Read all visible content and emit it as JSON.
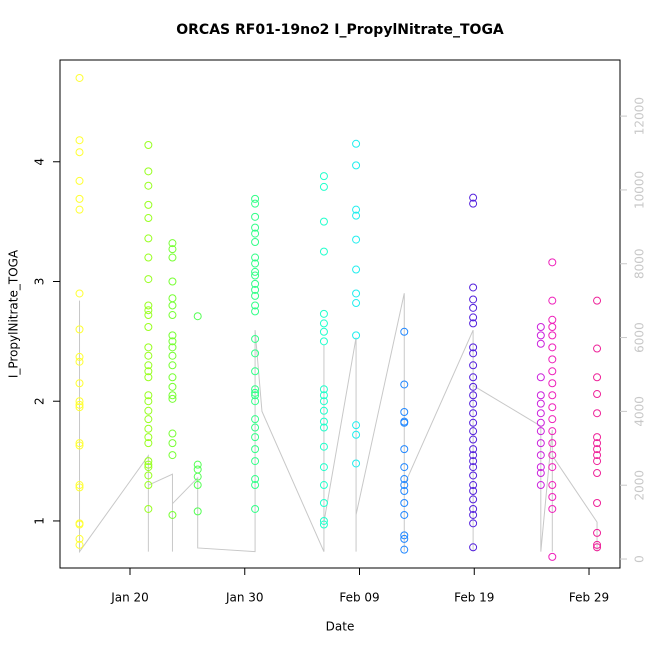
{
  "chart_data": {
    "type": "scatter",
    "title": "ORCAS RF01-19no2 I_PropylNitrate_TOGA",
    "x_label": "Date",
    "y_label": "I_PropylNitrate_TOGA",
    "xlim": [
      13.9,
      62.7
    ],
    "xticks": [
      {
        "value": 20,
        "label": "Jan 20"
      },
      {
        "value": 30,
        "label": "Jan 30"
      },
      {
        "value": 40,
        "label": "Feb 09"
      },
      {
        "value": 50,
        "label": "Feb 19"
      },
      {
        "value": 60,
        "label": "Feb 29"
      }
    ],
    "ylim": [
      0.607,
      4.85
    ],
    "yticks": [
      1,
      2,
      3,
      4
    ],
    "y2lim": [
      -243,
      13520
    ],
    "y2ticks": [
      0,
      2000,
      4000,
      6000,
      8000,
      10000,
      12000
    ],
    "series": [
      {
        "axis": "y2",
        "color": "#c8c8c8",
        "x": [
          15.6,
          15.6,
          21.6,
          21.6,
          21.6,
          23.7,
          23.7,
          23.7,
          25.9,
          25.9,
          30.9,
          30.9,
          31.5,
          36.9,
          36.9,
          36.9,
          39.7,
          39.7,
          39.7,
          43.9,
          43.9,
          43.9,
          49.9,
          49.9,
          49.9,
          55.8,
          55.8,
          56.8,
          56.8,
          56.8,
          60.7,
          60.7
        ],
        "values": [
          7000,
          200,
          2800,
          200,
          2000,
          2300,
          200,
          1500,
          2200,
          300,
          200,
          6200,
          4000,
          200,
          5800,
          1000,
          6000,
          200,
          1200,
          7200,
          200,
          2000,
          6200,
          200,
          4700,
          3600,
          200,
          3500,
          200,
          2800,
          1000,
          200
        ]
      },
      {
        "color": "#ffff33",
        "x": [
          15.6,
          15.6,
          15.6,
          15.6,
          15.6,
          15.6,
          15.6,
          15.6,
          15.6,
          15.6,
          15.6,
          15.6,
          15.6,
          15.6,
          15.6,
          15.6,
          15.6,
          15.6,
          15.6,
          15.6,
          15.6,
          15.6
        ],
        "values": [
          4.7,
          4.18,
          4.08,
          3.84,
          3.69,
          3.6,
          2.9,
          2.6,
          2.37,
          2.33,
          2.15,
          2.0,
          1.97,
          1.95,
          1.65,
          1.63,
          1.3,
          1.28,
          0.98,
          0.97,
          0.85,
          0.8
        ]
      },
      {
        "color": "#99ff22",
        "x": [
          21.6,
          21.6,
          21.6,
          21.6,
          21.6,
          21.6,
          21.6,
          21.6,
          21.6,
          21.6,
          21.6,
          21.6,
          21.6,
          21.6,
          21.6,
          21.6,
          21.6,
          21.6,
          21.6,
          21.6,
          21.6,
          21.6,
          21.6,
          21.6,
          21.6,
          21.6,
          21.6,
          21.6,
          21.6,
          21.6
        ],
        "values": [
          4.14,
          3.92,
          3.8,
          3.64,
          3.53,
          3.36,
          3.2,
          3.02,
          2.8,
          2.76,
          2.72,
          2.62,
          2.45,
          2.38,
          2.3,
          2.25,
          2.2,
          2.05,
          2.0,
          1.92,
          1.85,
          1.77,
          1.7,
          1.65,
          1.5,
          1.47,
          1.45,
          1.38,
          1.3,
          1.1
        ]
      },
      {
        "color": "#77ff33",
        "x": [
          23.7,
          23.7,
          23.7,
          23.7,
          23.7,
          23.7,
          23.7,
          23.7,
          23.7,
          23.7,
          23.7,
          23.7,
          23.7,
          23.7,
          23.7,
          23.7,
          23.7,
          23.7,
          23.7,
          23.7
        ],
        "values": [
          3.32,
          3.27,
          3.2,
          3.0,
          2.86,
          2.8,
          2.72,
          2.55,
          2.5,
          2.45,
          2.38,
          2.3,
          2.2,
          2.12,
          2.05,
          2.02,
          1.73,
          1.65,
          1.55,
          1.05
        ]
      },
      {
        "color": "#55ff55",
        "x": [
          25.9,
          25.9,
          25.9,
          25.9,
          25.9,
          25.9
        ],
        "values": [
          2.71,
          1.47,
          1.43,
          1.37,
          1.3,
          1.08
        ]
      },
      {
        "color": "#33ff88",
        "x": [
          30.9,
          30.9,
          30.9,
          30.9,
          30.9,
          30.9,
          30.9,
          30.9,
          30.9,
          30.9,
          30.9,
          30.9,
          30.9,
          30.9,
          30.9,
          30.9,
          30.9,
          30.9,
          30.9,
          30.9,
          30.9,
          30.9,
          30.9,
          30.9,
          30.9,
          30.9,
          30.9,
          30.9,
          30.9,
          30.9
        ],
        "values": [
          3.69,
          3.65,
          3.54,
          3.45,
          3.4,
          3.33,
          3.2,
          3.15,
          3.08,
          3.05,
          2.98,
          2.93,
          2.88,
          2.8,
          2.75,
          2.52,
          2.4,
          2.25,
          2.1,
          2.07,
          2.05,
          2.0,
          1.85,
          1.78,
          1.7,
          1.6,
          1.5,
          1.35,
          1.3,
          1.1
        ]
      },
      {
        "color": "#22ffcc",
        "x": [
          36.9,
          36.9,
          36.9,
          36.9,
          36.9,
          36.9,
          36.9,
          36.9,
          36.9,
          36.9,
          36.9,
          36.9,
          36.9,
          36.9,
          36.9,
          36.9,
          36.9,
          36.9,
          36.9,
          36.9
        ],
        "values": [
          3.88,
          3.79,
          3.5,
          3.25,
          2.73,
          2.65,
          2.58,
          2.5,
          2.1,
          2.05,
          2.0,
          1.92,
          1.83,
          1.78,
          1.62,
          1.45,
          1.3,
          1.15,
          1.0,
          0.97
        ]
      },
      {
        "color": "#22eeee",
        "x": [
          39.7,
          39.7,
          39.7,
          39.7,
          39.7,
          39.7,
          39.7,
          39.7,
          39.7,
          39.7,
          39.7,
          39.7
        ],
        "values": [
          4.15,
          3.97,
          3.6,
          3.55,
          3.35,
          3.1,
          2.9,
          2.82,
          2.55,
          1.8,
          1.72,
          1.48
        ]
      },
      {
        "color": "#2288ff",
        "x": [
          43.9,
          43.9,
          43.9,
          43.9,
          43.9,
          43.9,
          43.9,
          43.9,
          43.9,
          43.9,
          43.9,
          43.9,
          43.9,
          43.9,
          43.9
        ],
        "values": [
          2.58,
          2.14,
          1.91,
          1.83,
          1.82,
          1.6,
          1.45,
          1.35,
          1.3,
          1.25,
          1.15,
          1.05,
          0.88,
          0.85,
          0.76
        ]
      },
      {
        "color": "#5522dd",
        "x": [
          49.9,
          49.9,
          49.9,
          49.9,
          49.9,
          49.9,
          49.9,
          49.9,
          49.9,
          49.9,
          49.9,
          49.9,
          49.9,
          49.9,
          49.9,
          49.9,
          49.9,
          49.9,
          49.9,
          49.9,
          49.9,
          49.9,
          49.9,
          49.9,
          49.9,
          49.9,
          49.9,
          49.9,
          49.9,
          49.9
        ],
        "values": [
          3.7,
          3.65,
          2.95,
          2.85,
          2.78,
          2.7,
          2.65,
          2.45,
          2.4,
          2.3,
          2.2,
          2.12,
          2.05,
          1.98,
          1.9,
          1.82,
          1.75,
          1.68,
          1.6,
          1.55,
          1.5,
          1.45,
          1.38,
          1.3,
          1.25,
          1.18,
          1.1,
          1.05,
          0.98,
          0.78
        ]
      },
      {
        "color": "#cc22dd",
        "x": [
          55.8,
          55.8,
          55.8,
          55.8,
          55.8,
          55.8,
          55.8,
          55.8,
          55.8,
          55.8,
          55.8,
          55.8,
          55.8,
          55.8
        ],
        "values": [
          2.62,
          2.55,
          2.48,
          2.2,
          2.05,
          1.98,
          1.9,
          1.82,
          1.75,
          1.65,
          1.55,
          1.45,
          1.4,
          1.3
        ]
      },
      {
        "color": "#ee22bb",
        "x": [
          56.8,
          56.8,
          56.8,
          56.8,
          56.8,
          56.8,
          56.8,
          56.8,
          56.8,
          56.8,
          56.8,
          56.8,
          56.8,
          56.8,
          56.8,
          56.8,
          56.8,
          56.8,
          56.8,
          56.8
        ],
        "values": [
          3.16,
          2.84,
          2.68,
          2.62,
          2.55,
          2.45,
          2.35,
          2.25,
          2.15,
          2.05,
          1.95,
          1.85,
          1.75,
          1.65,
          1.55,
          1.45,
          1.3,
          1.2,
          1.1,
          0.7
        ]
      },
      {
        "color": "#ee2299",
        "x": [
          60.7,
          60.7,
          60.7,
          60.7,
          60.7,
          60.7,
          60.7,
          60.7,
          60.7,
          60.7,
          60.7,
          60.7,
          60.7,
          60.7,
          60.7
        ],
        "values": [
          2.84,
          2.44,
          2.2,
          2.06,
          1.9,
          1.7,
          1.65,
          1.6,
          1.55,
          1.5,
          1.4,
          1.15,
          0.9,
          0.8,
          0.78
        ]
      }
    ]
  }
}
